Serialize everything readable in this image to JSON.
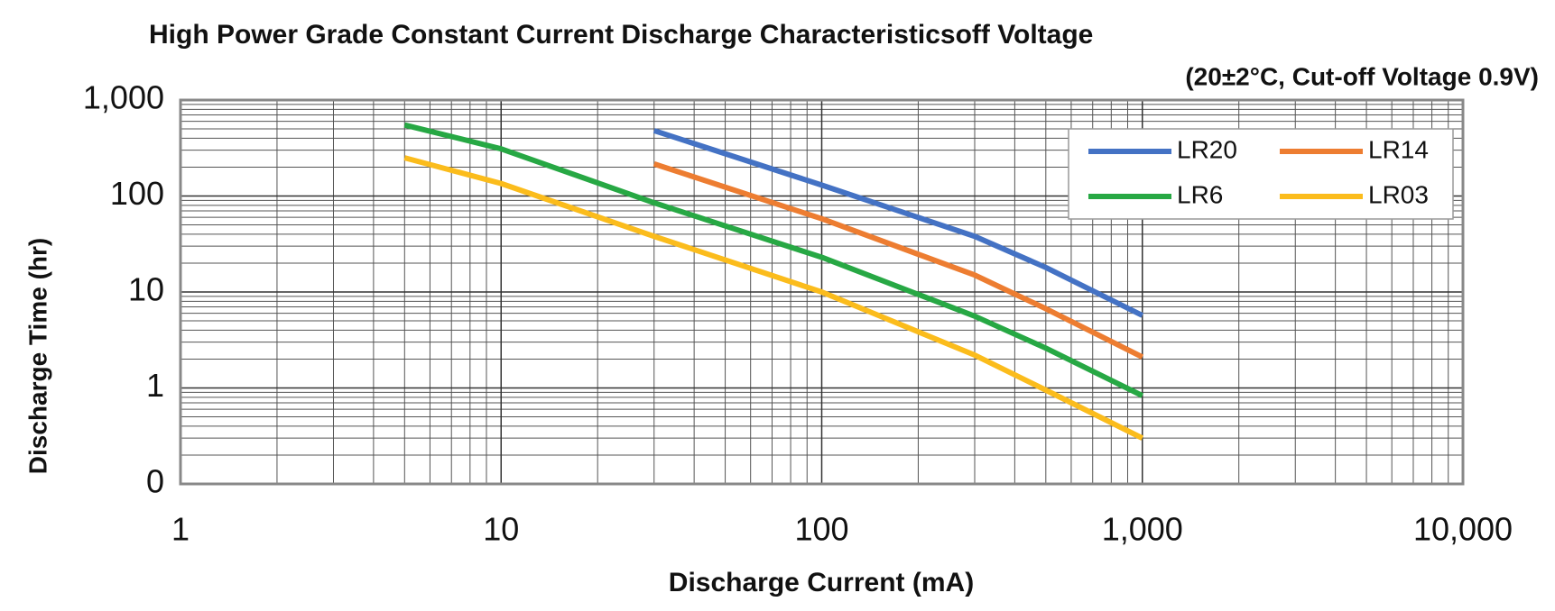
{
  "chart_data": {
    "type": "line",
    "title": "High Power Grade Constant Current Discharge Characteristicsoff Voltage",
    "subtitle": "(20±2°C, Cut-off Voltage 0.9V)",
    "x_label": "Discharge Current (mA)",
    "y_label": "Discharge Time (hr)",
    "x": [
      5,
      10,
      30,
      100,
      300,
      500,
      1000
    ],
    "series": [
      {
        "name": "LR20",
        "color": "#4472c4",
        "values": [
          null,
          null,
          480,
          130,
          38,
          18,
          5.7
        ]
      },
      {
        "name": "LR14",
        "color": "#ed7d31",
        "values": [
          null,
          null,
          216,
          58,
          15,
          6.7,
          2.1
        ]
      },
      {
        "name": "LR6",
        "color": "#27a844",
        "values": [
          550,
          310,
          85,
          23,
          5.6,
          2.6,
          0.83
        ]
      },
      {
        "name": "LR03",
        "color": "#fbbc1c",
        "values": [
          250,
          135,
          38,
          10,
          2.2,
          0.95,
          0.3
        ]
      }
    ],
    "xlim": [
      1,
      10000
    ],
    "xticks": [
      1,
      10,
      100,
      {
        "value": 1000,
        "label": "1,000"
      },
      {
        "value": 10000,
        "label": "10,000"
      }
    ],
    "ylim": [
      0.1,
      1000
    ],
    "yticks": [
      {
        "value": 0.1,
        "label": "0"
      },
      1,
      10,
      100,
      {
        "value": 1000,
        "label": "1,000"
      }
    ],
    "log_x": true,
    "log_y": true,
    "grid": true,
    "legend_position": "upper right"
  }
}
